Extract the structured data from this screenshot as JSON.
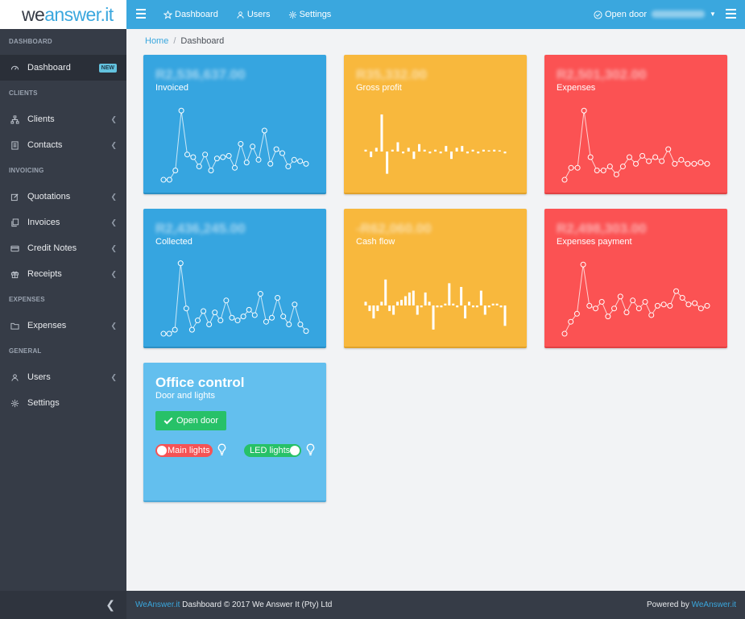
{
  "brand": {
    "logo_part1": "we",
    "logo_part2": "answer.it"
  },
  "topbar": {
    "nav": [
      {
        "label": "Dashboard",
        "icon": "star-icon"
      },
      {
        "label": "Users",
        "icon": "users-icon"
      },
      {
        "label": "Settings",
        "icon": "gear-icon"
      }
    ],
    "open_door": "Open door"
  },
  "sidebar": {
    "sections": [
      {
        "title": "DASHBOARD",
        "items": [
          {
            "label": "Dashboard",
            "icon": "gauge-icon",
            "badge": "NEW",
            "active": true
          }
        ]
      },
      {
        "title": "CLIENTS",
        "items": [
          {
            "label": "Clients",
            "icon": "sitemap-icon"
          },
          {
            "label": "Contacts",
            "icon": "address-book-icon"
          }
        ]
      },
      {
        "title": "INVOICING",
        "items": [
          {
            "label": "Quotations",
            "icon": "edit-icon"
          },
          {
            "label": "Invoices",
            "icon": "copy-icon"
          },
          {
            "label": "Credit Notes",
            "icon": "credit-card-icon"
          },
          {
            "label": "Receipts",
            "icon": "gift-icon"
          }
        ]
      },
      {
        "title": "EXPENSES",
        "items": [
          {
            "label": "Expenses",
            "icon": "folder-icon"
          }
        ]
      },
      {
        "title": "GENERAL",
        "items": [
          {
            "label": "Users",
            "icon": "users-icon"
          },
          {
            "label": "Settings",
            "icon": "gear-icon"
          }
        ]
      }
    ]
  },
  "breadcrumb": {
    "home": "Home",
    "current": "Dashboard"
  },
  "cards": {
    "invoiced": {
      "label": "Invoiced",
      "amount": "R2,536,637.00",
      "color": "#36a5e0",
      "type": "line",
      "values": [
        3,
        3,
        10,
        55,
        22,
        20,
        13,
        22,
        10,
        19,
        20,
        21,
        12,
        30,
        16,
        28,
        18,
        40,
        15,
        26,
        23,
        13,
        18,
        17,
        15
      ]
    },
    "gross_profit": {
      "label": "Gross profit",
      "color": "#f8b83d",
      "type": "bar",
      "amount": "R35,332.00",
      "values": [
        1,
        -3,
        2,
        20,
        -12,
        1,
        5,
        -1,
        2,
        -4,
        4,
        1,
        -1,
        1,
        -1,
        3,
        -4,
        2,
        3,
        -1,
        1,
        -1,
        1,
        0,
        1,
        0,
        -1
      ]
    },
    "expenses": {
      "label": "Expenses",
      "amount": "R2,501,302.00",
      "color": "#fb5253",
      "type": "line",
      "values": [
        3,
        12,
        12,
        55,
        20,
        10,
        10,
        13,
        7,
        13,
        20,
        15,
        21,
        17,
        20,
        17,
        26,
        15,
        18,
        15,
        15,
        16,
        15
      ]
    },
    "collected": {
      "label": "Collected",
      "amount": "R2,436,245.00",
      "color": "#36a5e0",
      "type": "line",
      "values": [
        3,
        3,
        6,
        56,
        22,
        6,
        13,
        20,
        10,
        19,
        13,
        28,
        15,
        13,
        16,
        21,
        17,
        33,
        12,
        15,
        30,
        16,
        10,
        25,
        10,
        5
      ]
    },
    "cash_flow": {
      "label": "Cash flow",
      "amount": "-R62,060.00",
      "color": "#f8b83d",
      "type": "bar",
      "values": [
        2,
        -3,
        -7,
        -3,
        2,
        14,
        -3,
        -5,
        2,
        3,
        5,
        7,
        8,
        -5,
        -1,
        7,
        2,
        -13,
        -1,
        -1,
        1,
        12,
        1,
        -1,
        10,
        -7,
        2,
        -1,
        -1,
        8,
        -5,
        -1,
        1,
        1,
        -1,
        -11
      ]
    },
    "expenses_payment": {
      "label": "Expenses payment",
      "amount": "R2,498,303.00",
      "color": "#fb5253",
      "type": "line",
      "values": [
        3,
        12,
        18,
        55,
        24,
        22,
        27,
        16,
        22,
        31,
        19,
        28,
        22,
        27,
        17,
        24,
        25,
        24,
        35,
        30,
        25,
        26,
        22,
        24
      ]
    }
  },
  "office": {
    "title": "Office control",
    "subtitle": "Door and lights",
    "open_door_button": "Open door",
    "main_lights": "Main lights",
    "led_lights": "LED lights"
  },
  "footer": {
    "brand_link": "WeAnswer.it",
    "copyright": "Dashboard © 2017 We Answer It (Pty) Ltd",
    "powered_by": "Powered by",
    "powered_link": "WeAnswer.it"
  }
}
